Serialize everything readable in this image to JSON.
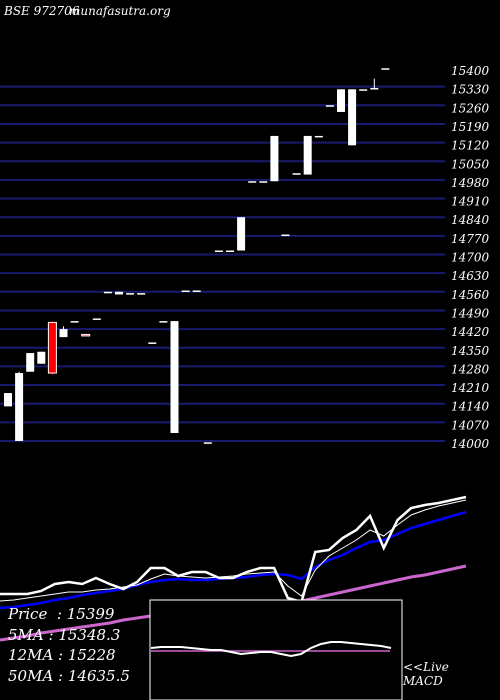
{
  "header": {
    "exchange": "BSE",
    "code": "972706",
    "site": "munafasutra.org"
  },
  "stats": {
    "price_label": "Price",
    "price": "15399",
    "ma5_label": "5MA",
    "ma5": "15348.3",
    "ma12_label": "12MA",
    "ma12": "15228",
    "ma50_label": "50MA",
    "ma50": "14635.5"
  },
  "macd_note": {
    "live": "<<Live",
    "macd": "MACD"
  },
  "colors": {
    "background": "#000000",
    "grid": "#1a1a6e",
    "up": "#ffffff",
    "down": "#ff0000",
    "ma_fast": "#ffffff",
    "ma_mid": "#0000ff",
    "ma_slow": "#cc66cc"
  },
  "chart_data": {
    "type": "candlestick",
    "y_ticks": [
      15400,
      15330,
      15260,
      15190,
      15120,
      15050,
      14980,
      14910,
      14840,
      14770,
      14700,
      14630,
      14560,
      14490,
      14420,
      14350,
      14280,
      14210,
      14140,
      14070,
      14000
    ],
    "ylim": [
      14000,
      15400
    ],
    "grid": true,
    "candles": [
      {
        "o": 14180,
        "h": 14180,
        "l": 14130,
        "c": 14130,
        "color": "white"
      },
      {
        "o": 14000,
        "h": 14260,
        "l": 14000,
        "c": 14255,
        "color": "white"
      },
      {
        "o": 14260,
        "h": 14330,
        "l": 14260,
        "c": 14330,
        "color": "white"
      },
      {
        "o": 14290,
        "h": 14335,
        "l": 14290,
        "c": 14335,
        "color": "white"
      },
      {
        "o": 14445,
        "h": 14450,
        "l": 14250,
        "c": 14255,
        "color": "red"
      },
      {
        "o": 14390,
        "h": 14430,
        "l": 14390,
        "c": 14420,
        "color": "white"
      },
      {
        "o": 14450,
        "h": 14450,
        "l": 14450,
        "c": 14450,
        "color": "white"
      },
      {
        "o": 14400,
        "h": 14400,
        "l": 14400,
        "c": 14400,
        "color": "red"
      },
      {
        "o": 14460,
        "h": 14460,
        "l": 14460,
        "c": 14460,
        "color": "white"
      },
      {
        "o": 14560,
        "h": 14560,
        "l": 14560,
        "c": 14560,
        "color": "white"
      },
      {
        "o": 14550,
        "h": 14560,
        "l": 14550,
        "c": 14560,
        "color": "white"
      },
      {
        "o": 14555,
        "h": 14555,
        "l": 14555,
        "c": 14555,
        "color": "white"
      },
      {
        "o": 14555,
        "h": 14555,
        "l": 14555,
        "c": 14555,
        "color": "white"
      },
      {
        "o": 14370,
        "h": 14370,
        "l": 14370,
        "c": 14370,
        "color": "white"
      },
      {
        "o": 14450,
        "h": 14450,
        "l": 14450,
        "c": 14450,
        "color": "white"
      },
      {
        "o": 14030,
        "h": 14450,
        "l": 14030,
        "c": 14450,
        "color": "white"
      },
      {
        "o": 14565,
        "h": 14565,
        "l": 14565,
        "c": 14565,
        "color": "white"
      },
      {
        "o": 14565,
        "h": 14565,
        "l": 14565,
        "c": 14565,
        "color": "white"
      },
      {
        "o": 13995,
        "h": 13995,
        "l": 13995,
        "c": 13995,
        "color": "white"
      },
      {
        "o": 14715,
        "h": 14715,
        "l": 14715,
        "c": 14715,
        "color": "white"
      },
      {
        "o": 14715,
        "h": 14715,
        "l": 14715,
        "c": 14715,
        "color": "white"
      },
      {
        "o": 14715,
        "h": 14840,
        "l": 14715,
        "c": 14840,
        "color": "white"
      },
      {
        "o": 14975,
        "h": 14975,
        "l": 14975,
        "c": 14975,
        "color": "white"
      },
      {
        "o": 14975,
        "h": 14975,
        "l": 14975,
        "c": 14975,
        "color": "white"
      },
      {
        "o": 14975,
        "h": 15145,
        "l": 14975,
        "c": 15145,
        "color": "white"
      },
      {
        "o": 14775,
        "h": 14775,
        "l": 14775,
        "c": 14775,
        "color": "white"
      },
      {
        "o": 15005,
        "h": 15005,
        "l": 15005,
        "c": 15005,
        "color": "white"
      },
      {
        "o": 15000,
        "h": 15145,
        "l": 15000,
        "c": 15145,
        "color": "white"
      },
      {
        "o": 15145,
        "h": 15145,
        "l": 15145,
        "c": 15145,
        "color": "white"
      },
      {
        "o": 15260,
        "h": 15260,
        "l": 15260,
        "c": 15260,
        "color": "white"
      },
      {
        "o": 15235,
        "h": 15320,
        "l": 15235,
        "c": 15320,
        "color": "white"
      },
      {
        "o": 15110,
        "h": 15320,
        "l": 15110,
        "c": 15320,
        "color": "white"
      },
      {
        "o": 15320,
        "h": 15320,
        "l": 15320,
        "c": 15320,
        "color": "white"
      },
      {
        "o": 15325,
        "h": 15360,
        "l": 15325,
        "c": 15325,
        "color": "white"
      },
      {
        "o": 15399,
        "h": 15399,
        "l": 15399,
        "c": 15399,
        "color": "white"
      }
    ],
    "lower_panel": {
      "price_line": [
        594,
        594,
        594,
        591,
        584,
        582,
        584,
        578,
        584,
        589,
        582,
        568,
        568,
        576,
        572,
        572,
        578,
        578,
        572,
        568,
        568,
        598,
        602,
        552,
        550,
        538,
        530,
        516,
        548,
        520,
        508,
        505,
        503,
        500,
        497
      ],
      "ma_fast_line": [
        601,
        600,
        598,
        596,
        594,
        592,
        592,
        590,
        589,
        587,
        585,
        579,
        574,
        576,
        577,
        578,
        577,
        576,
        574,
        573,
        572,
        586,
        596,
        570,
        556,
        548,
        540,
        530,
        536,
        525,
        515,
        510,
        506,
        503,
        500
      ],
      "ma_mid_line": [
        608,
        607,
        605,
        603,
        600,
        598,
        595,
        593,
        591,
        589,
        585,
        582,
        580,
        579,
        580,
        580,
        579,
        578,
        577,
        575,
        574,
        575,
        579,
        567,
        560,
        555,
        548,
        542,
        540,
        534,
        528,
        524,
        520,
        516,
        512
      ],
      "ma_slow_line": [
        640,
        638,
        636,
        633,
        631,
        629,
        627,
        625,
        623,
        620,
        618,
        616,
        614,
        612,
        611,
        610,
        609,
        607,
        606,
        604,
        603,
        602,
        601,
        598,
        595,
        592,
        589,
        586,
        583,
        580,
        577,
        575,
        572,
        569,
        566
      ]
    },
    "macd_panel": {
      "macd_line": [
        648,
        647,
        647,
        647,
        648,
        649,
        650,
        650,
        652,
        654,
        653,
        652,
        652,
        654,
        656,
        654,
        648,
        644,
        642,
        642,
        643,
        644,
        645,
        646,
        648
      ],
      "zero_line": 651
    }
  }
}
